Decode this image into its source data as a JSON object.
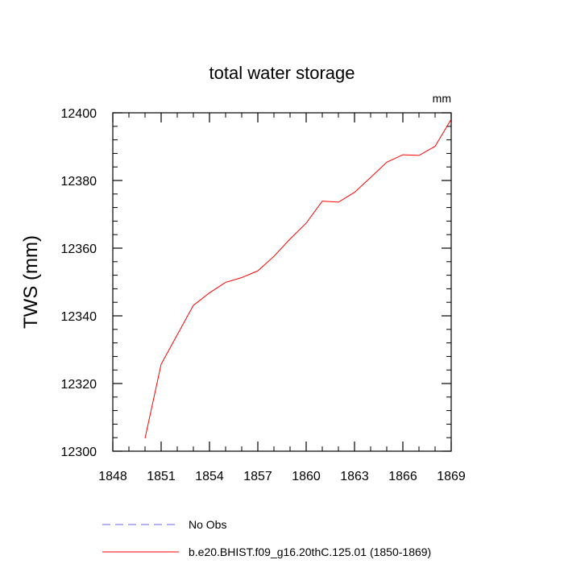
{
  "chart_data": {
    "type": "line",
    "title": "total water storage",
    "units": "mm",
    "ylabel": "TWS  (mm)",
    "xlabel": "",
    "xlim": [
      1848,
      1869
    ],
    "ylim": [
      12300,
      12400
    ],
    "xticks": [
      1848,
      1851,
      1854,
      1857,
      1860,
      1863,
      1866,
      1869
    ],
    "yticks": [
      12300,
      12320,
      12340,
      12360,
      12380,
      12400
    ],
    "grid": false,
    "legend_position": "bottom",
    "series": [
      {
        "name": "No Obs",
        "color": "#6666ee",
        "style": "dashed",
        "x": [],
        "y": []
      },
      {
        "name": "b.e20.BHIST.f09_g16.20thC.125.01 (1850-1869)",
        "color": "#ff0000",
        "style": "solid",
        "x": [
          1850,
          1851,
          1852,
          1853,
          1854,
          1855,
          1856,
          1857,
          1858,
          1859,
          1860,
          1861,
          1862,
          1863,
          1864,
          1865,
          1866,
          1867,
          1868,
          1869
        ],
        "y": [
          12303.8,
          12325.7,
          12334.4,
          12343.1,
          12346.8,
          12349.9,
          12351.3,
          12353.3,
          12357.6,
          12362.7,
          12367.4,
          12373.9,
          12373.6,
          12376.5,
          12380.9,
          12385.4,
          12387.6,
          12387.4,
          12390.1,
          12398.1
        ]
      }
    ]
  }
}
